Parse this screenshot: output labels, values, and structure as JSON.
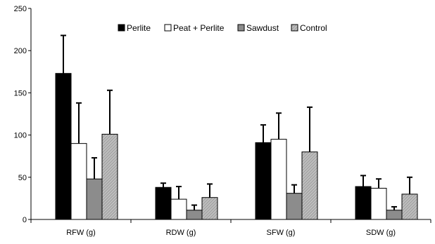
{
  "chart_data": {
    "type": "bar",
    "title": "",
    "xlabel": "",
    "ylabel": "",
    "ylim": [
      0,
      250
    ],
    "yticks": [
      0,
      50,
      100,
      150,
      200,
      250
    ],
    "grid": false,
    "legend_position": "top-center",
    "categories": [
      "RFW (g)",
      "RDW (g)",
      "SFW (g)",
      "SDW (g)"
    ],
    "series": [
      {
        "name": "Perlite",
        "fill": "solid",
        "color": "#000000",
        "values": [
          173,
          38,
          91,
          39
        ],
        "errors": [
          45,
          5,
          21,
          13
        ]
      },
      {
        "name": "Peat + Perlite",
        "fill": "open",
        "color": "#ffffff",
        "values": [
          90,
          24,
          95,
          37
        ],
        "errors": [
          48,
          15,
          31,
          11
        ]
      },
      {
        "name": "Sawdust",
        "fill": "gray",
        "color": "#8c8c8c",
        "values": [
          48,
          11,
          31,
          11
        ],
        "errors": [
          25,
          6,
          10,
          4
        ]
      },
      {
        "name": "Control",
        "fill": "hatched",
        "color": "#b3b3b3",
        "values": [
          101,
          26,
          80,
          30
        ],
        "errors": [
          52,
          16,
          53,
          20
        ]
      }
    ]
  }
}
